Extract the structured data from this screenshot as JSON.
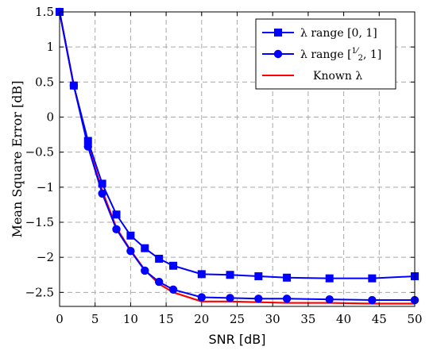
{
  "chart_data": {
    "type": "line",
    "title": "",
    "xlabel": "SNR [dB]",
    "ylabel": "Mean Square Error [dB]",
    "xlim": [
      0,
      50
    ],
    "ylim": [
      -2.7,
      1.5
    ],
    "xticks": [
      0,
      5,
      10,
      15,
      20,
      25,
      30,
      35,
      40,
      45,
      50
    ],
    "yticks": [
      1.5,
      1,
      0.5,
      0,
      -0.5,
      -1,
      -1.5,
      -2,
      -2.5
    ],
    "xtick_labels": [
      "0",
      "5",
      "10",
      "15",
      "20",
      "25",
      "30",
      "35",
      "40",
      "45",
      "50"
    ],
    "ytick_labels": [
      "1.5",
      "1",
      "0.5",
      "0",
      "−0.5",
      "−1",
      "−1.5",
      "−2",
      "−2.5"
    ],
    "grid": true,
    "grid_style": "dashed",
    "legend_position": "top-right",
    "series": [
      {
        "name": "λ range [0, 1]",
        "color": "#0000ff",
        "marker": "square",
        "x": [
          0,
          2,
          4,
          6,
          8,
          10,
          12,
          14,
          16,
          20,
          24,
          28,
          32,
          38,
          44,
          50
        ],
        "y": [
          1.5,
          0.45,
          -0.34,
          -0.95,
          -1.39,
          -1.69,
          -1.87,
          -2.02,
          -2.12,
          -2.24,
          -2.25,
          -2.27,
          -2.29,
          -2.3,
          -2.3,
          -2.27
        ]
      },
      {
        "name": "λ range [½, 1]",
        "name_parts": {
          "prefix": "λ range [",
          "num": "1",
          "den": "2",
          "suffix": ", 1]"
        },
        "color": "#0000ff",
        "marker": "circle",
        "x": [
          0,
          2,
          4,
          6,
          8,
          10,
          12,
          14,
          16,
          20,
          24,
          28,
          32,
          38,
          44,
          50
        ],
        "y": [
          1.5,
          0.45,
          -0.42,
          -1.09,
          -1.6,
          -1.91,
          -2.19,
          -2.35,
          -2.46,
          -2.57,
          -2.58,
          -2.59,
          -2.59,
          -2.6,
          -2.61,
          -2.61
        ]
      },
      {
        "name": "Known λ",
        "color": "#ff0000",
        "marker": "none",
        "x": [
          0,
          2,
          4,
          6,
          8,
          10,
          12,
          14,
          16,
          20,
          24,
          28,
          32,
          38,
          44,
          50
        ],
        "y": [
          1.5,
          0.45,
          -0.4,
          -1.05,
          -1.58,
          -1.9,
          -2.18,
          -2.38,
          -2.5,
          -2.63,
          -2.63,
          -2.64,
          -2.65,
          -2.65,
          -2.66,
          -2.66
        ]
      }
    ]
  }
}
